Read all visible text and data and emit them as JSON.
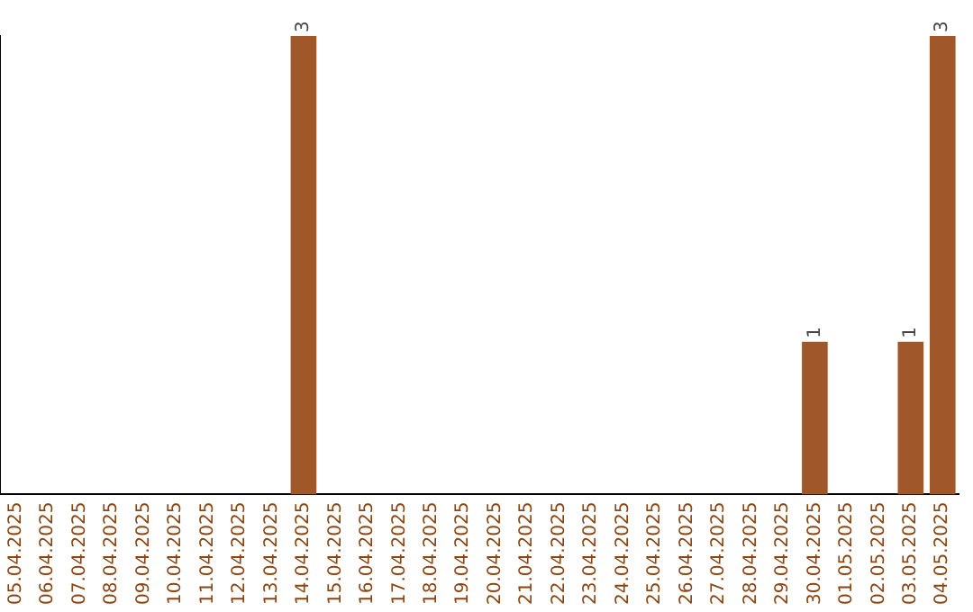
{
  "chart_data": {
    "type": "bar",
    "categories": [
      "05.04.2025",
      "06.04.2025",
      "07.04.2025",
      "08.04.2025",
      "09.04.2025",
      "10.04.2025",
      "11.04.2025",
      "12.04.2025",
      "13.04.2025",
      "14.04.2025",
      "15.04.2025",
      "16.04.2025",
      "17.04.2025",
      "18.04.2025",
      "19.04.2025",
      "20.04.2025",
      "21.04.2025",
      "22.04.2025",
      "23.04.2025",
      "24.04.2025",
      "25.04.2025",
      "26.04.2025",
      "27.04.2025",
      "28.04.2025",
      "29.04.2025",
      "30.04.2025",
      "01.05.2025",
      "02.05.2025",
      "03.05.2025",
      "04.05.2025"
    ],
    "values": [
      0,
      0,
      0,
      0,
      0,
      0,
      0,
      0,
      0,
      3,
      0,
      0,
      0,
      0,
      0,
      0,
      0,
      0,
      0,
      0,
      0,
      0,
      0,
      0,
      0,
      1,
      0,
      0,
      1,
      3
    ],
    "value_labels": [
      null,
      null,
      null,
      null,
      null,
      null,
      null,
      null,
      null,
      "3",
      null,
      null,
      null,
      null,
      null,
      null,
      null,
      null,
      null,
      null,
      null,
      null,
      null,
      null,
      null,
      "1",
      null,
      null,
      "1",
      "3"
    ],
    "color": "#a0582a",
    "grid": false,
    "legend": false,
    "tick_labels": "x"
  }
}
